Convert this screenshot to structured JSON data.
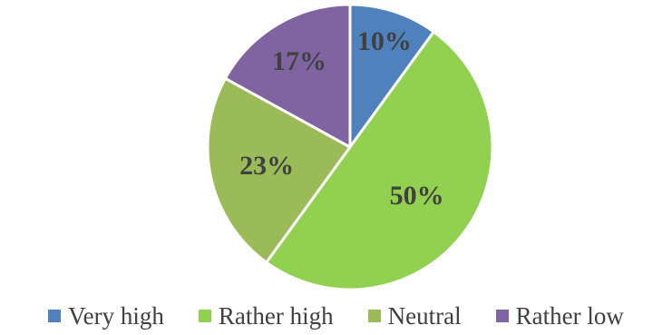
{
  "chart_data": {
    "type": "pie",
    "title": "",
    "categories": [
      "Very high",
      "Rather high",
      "Neutral",
      "Rather low"
    ],
    "values": [
      10,
      50,
      23,
      17
    ],
    "value_labels": [
      "10%",
      "50%",
      "23%",
      "17%"
    ],
    "colors": [
      "#4f81bd",
      "#92d050",
      "#9bbb59",
      "#8064a2"
    ],
    "start_angle_deg": 0,
    "direction": "clockwise",
    "legend_position": "bottom",
    "slice_border_color": "#ffffff"
  }
}
